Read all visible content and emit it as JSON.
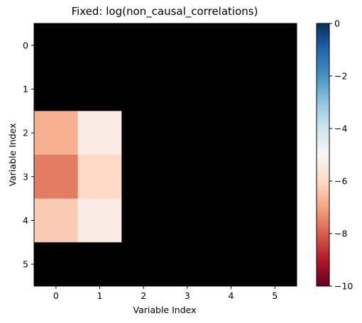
{
  "chart_data": {
    "type": "heatmap",
    "title": "Fixed: log(non_causal_correlations)",
    "xlabel": "Variable Index",
    "ylabel": "Variable Index",
    "x_ticks": [
      "0",
      "1",
      "2",
      "3",
      "4",
      "5"
    ],
    "y_ticks": [
      "0",
      "1",
      "2",
      "3",
      "4",
      "5"
    ],
    "masked_color": "#000000",
    "colormap": "RdBu",
    "clim": [
      -10,
      0
    ],
    "colorbar": {
      "ticks": [
        0,
        -2,
        -4,
        -6,
        -8,
        -10
      ],
      "tick_labels": [
        "0",
        "−2",
        "−4",
        "−6",
        "−8",
        "−10"
      ]
    },
    "values": [
      [
        null,
        null,
        null,
        null,
        null,
        null
      ],
      [
        null,
        null,
        null,
        null,
        null,
        null
      ],
      [
        -6.8,
        -5.4,
        null,
        null,
        null,
        null
      ],
      [
        -7.6,
        -6.0,
        null,
        null,
        null,
        null
      ],
      [
        -6.3,
        -5.4,
        null,
        null,
        null,
        null
      ],
      [
        null,
        null,
        null,
        null,
        null,
        null
      ]
    ],
    "grid": false
  }
}
